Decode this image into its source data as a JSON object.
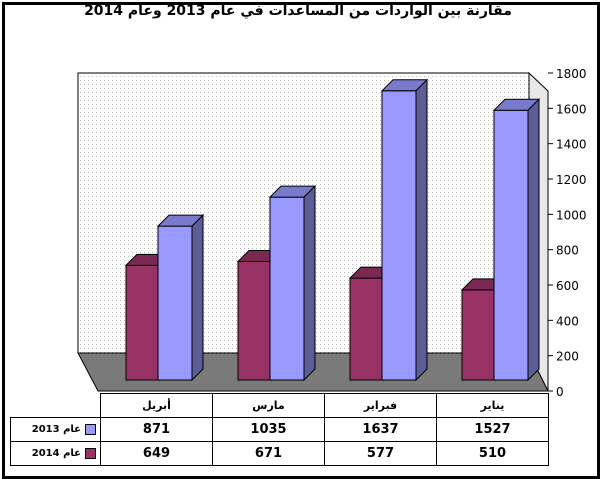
{
  "chart_data": {
    "type": "bar",
    "title": "مقارنة بين الواردات من المساعدات في عام 2013 وعام 2014",
    "categories": [
      "يناير",
      "فبراير",
      "مارس",
      "أبريل"
    ],
    "series": [
      {
        "name": "عام 2013",
        "values": [
          1527,
          1637,
          1035,
          871
        ],
        "color": "#9999ff"
      },
      {
        "name": "عام 2014",
        "values": [
          510,
          577,
          671,
          649
        ],
        "color": "#993366"
      }
    ],
    "yticks": [
      "0",
      "200",
      "400",
      "600",
      "800",
      "1000",
      "1200",
      "1400",
      "1600",
      "1800"
    ],
    "ylim": [
      0,
      1800
    ],
    "y_axis_side": "right",
    "grid": false,
    "legend": "data-table",
    "three_d": true,
    "colors": {
      "wall": "#e8e8e8",
      "floor": "#7a7a7a"
    }
  }
}
